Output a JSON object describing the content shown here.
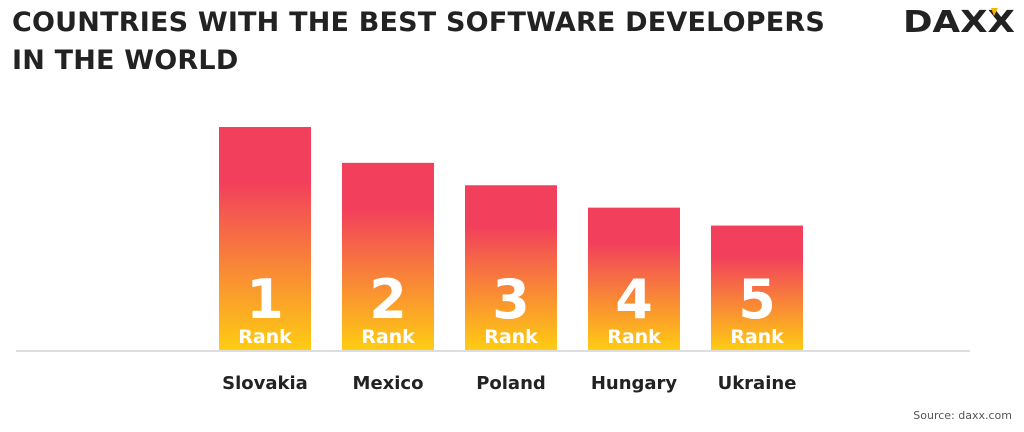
{
  "header": {
    "title_line1": "COUNTRIES WITH THE BEST SOFTWARE DEVELOPERS",
    "title_line2": "IN THE WORLD",
    "logo_text": "DAXX"
  },
  "footer": {
    "source": "Source: daxx.com"
  },
  "colors": {
    "bar_top": "#f2405c",
    "bar_bottom": "#ffcd12",
    "axis": "#dddddd",
    "text_dark": "#222222",
    "logo_accent": "#f7b500"
  },
  "chart_data": {
    "type": "bar",
    "title": "COUNTRIES WITH THE BEST SOFTWARE DEVELOPERS IN THE WORLD",
    "categories": [
      "Slovakia",
      "Mexico",
      "Poland",
      "Hungary",
      "Ukraine"
    ],
    "ranks": [
      "1",
      "2",
      "3",
      "4",
      "5"
    ],
    "rank_label": "Rank",
    "values": [
      5,
      4.2,
      3.7,
      3.2,
      2.8
    ],
    "ylim": [
      0,
      5
    ],
    "grid": false,
    "legend": "none"
  }
}
